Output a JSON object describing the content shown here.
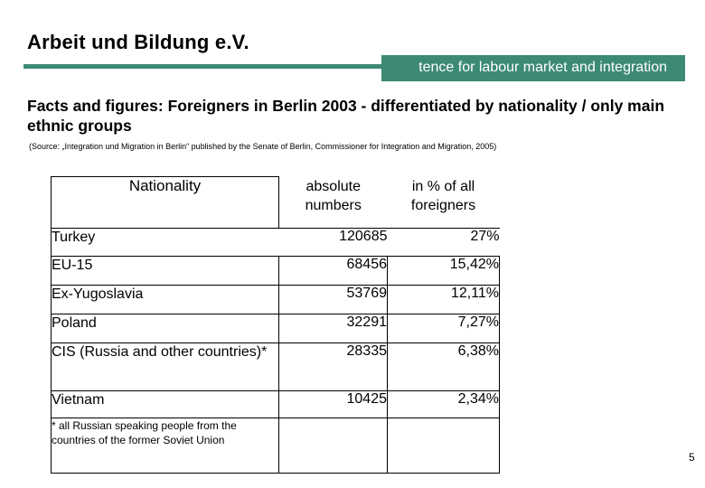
{
  "header": {
    "org_title": "Arbeit und Bildung e.V.",
    "tagline": "tence for labour market and integration"
  },
  "slide": {
    "heading": "Facts and figures: Foreigners in Berlin 2003 - differentiated by nationality / only main ethnic groups",
    "source": "(Source: „Integration und Migration in Berlin“ published by the Senate of Berlin, Commissioner for Integration and Migration, 2005)",
    "page_number": "5"
  },
  "table": {
    "columns": {
      "nationality": "Nationality",
      "absolute_line1": "absolute",
      "absolute_line2": "numbers",
      "percent_line1": "in % of all",
      "percent_line2": "foreigners"
    },
    "rows": [
      {
        "nationality": "Turkey",
        "absolute": "120685",
        "percent": "27%"
      },
      {
        "nationality": "EU-15",
        "absolute": "68456",
        "percent": "15,42%"
      },
      {
        "nationality": "Ex-Yugoslavia",
        "absolute": "53769",
        "percent": "12,11%"
      },
      {
        "nationality": "Poland",
        "absolute": "32291",
        "percent": "7,27%"
      },
      {
        "nationality": "CIS (Russia and other countries)*",
        "absolute": "28335",
        "percent": "6,38%"
      },
      {
        "nationality": "Vietnam",
        "absolute": "10425",
        "percent": "2,34%"
      }
    ],
    "footnote": "* all Russian speaking people from the countries of the former Soviet Union"
  },
  "colors": {
    "accent_green": "#3d8a74",
    "tagline_text": "#ffffff"
  }
}
